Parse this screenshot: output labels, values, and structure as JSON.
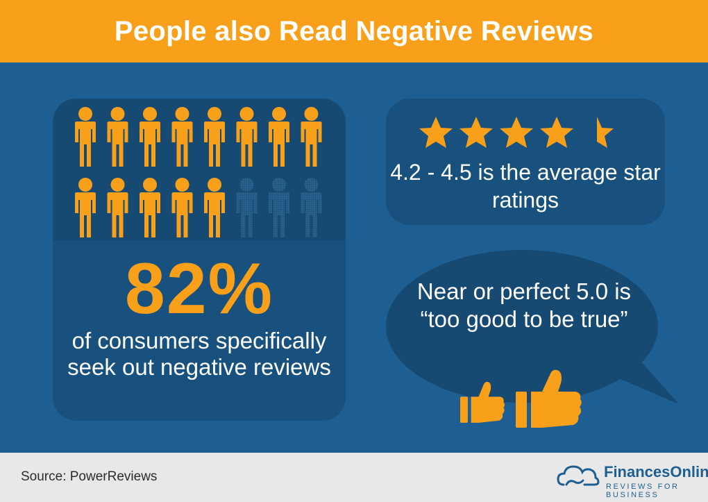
{
  "header": {
    "title": "People also Read Negative Reviews"
  },
  "people_stat": {
    "value": "82%",
    "description": "of consumers specifically seek out negative reviews",
    "fraction_highlighted": 0.82,
    "icon": "person-icon"
  },
  "rating": {
    "stars_shown": 4.5,
    "text": "4.2 - 4.5 is the average star ratings",
    "icon": "star-icon"
  },
  "perfect": {
    "text": "Near or perfect 5.0 is “too good to be true”",
    "icons": [
      "thumbs-up-icon",
      "thumbs-up-icon"
    ]
  },
  "footer": {
    "source": "Source: PowerReviews",
    "logo_name": "FinancesOnline",
    "logo_tagline": "REVIEWS FOR BUSINESS"
  },
  "colors": {
    "orange": "#f9a01b",
    "blue": "#1d5f93",
    "panel": "#19517e",
    "footer": "#e8e8e8"
  }
}
